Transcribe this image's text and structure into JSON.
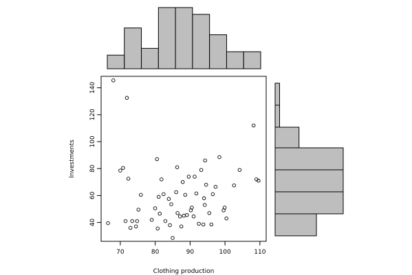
{
  "chart_data": [
    {
      "type": "scatter",
      "xlabel": "Clothing production",
      "ylabel": "Investments",
      "xlim": [
        64.5,
        111.8
      ],
      "ylim": [
        26,
        148.5
      ],
      "x_ticks": [
        70,
        80,
        90,
        100,
        110
      ],
      "y_ticks": [
        40,
        60,
        80,
        100,
        120,
        140
      ],
      "grid": false,
      "points": [
        [
          66.5,
          39.5
        ],
        [
          68.0,
          145.5
        ],
        [
          70.0,
          78.5
        ],
        [
          70.8,
          80.5
        ],
        [
          71.5,
          41.0
        ],
        [
          71.9,
          132.5
        ],
        [
          72.3,
          72.5
        ],
        [
          72.9,
          36.0
        ],
        [
          73.4,
          41.0
        ],
        [
          74.5,
          37.0
        ],
        [
          74.8,
          41.0
        ],
        [
          75.2,
          49.5
        ],
        [
          75.9,
          60.5
        ],
        [
          79.0,
          42.0
        ],
        [
          80.0,
          50.5
        ],
        [
          80.5,
          87.0
        ],
        [
          80.7,
          35.5
        ],
        [
          81.0,
          59.0
        ],
        [
          81.3,
          46.5
        ],
        [
          81.8,
          72.0
        ],
        [
          82.4,
          61.0
        ],
        [
          82.9,
          41.0
        ],
        [
          83.9,
          57.5
        ],
        [
          84.2,
          38.0
        ],
        [
          84.6,
          53.5
        ],
        [
          85.0,
          28.5
        ],
        [
          86.0,
          62.5
        ],
        [
          86.3,
          81.0
        ],
        [
          86.4,
          47.0
        ],
        [
          87.1,
          44.5
        ],
        [
          87.5,
          37.0
        ],
        [
          87.9,
          70.0
        ],
        [
          88.2,
          45.0
        ],
        [
          88.6,
          60.5
        ],
        [
          89.1,
          45.5
        ],
        [
          89.6,
          74.0
        ],
        [
          90.2,
          49.0
        ],
        [
          90.5,
          51.0
        ],
        [
          91.0,
          44.5
        ],
        [
          91.3,
          74.0
        ],
        [
          91.8,
          61.5
        ],
        [
          92.5,
          39.0
        ],
        [
          93.2,
          79.0
        ],
        [
          93.8,
          38.5
        ],
        [
          94.0,
          58.0
        ],
        [
          94.2,
          53.0
        ],
        [
          94.3,
          86.0
        ],
        [
          94.6,
          68.0
        ],
        [
          95.5,
          47.0
        ],
        [
          96.1,
          38.5
        ],
        [
          96.5,
          61.0
        ],
        [
          97.3,
          66.5
        ],
        [
          98.4,
          88.5
        ],
        [
          99.6,
          49.0
        ],
        [
          99.9,
          51.0
        ],
        [
          100.4,
          43.0
        ],
        [
          102.6,
          67.5
        ],
        [
          104.2,
          79.0
        ],
        [
          108.2,
          112.0
        ],
        [
          109.0,
          72.0
        ],
        [
          109.6,
          71.0
        ]
      ]
    },
    {
      "type": "bar",
      "xlim": [
        65,
        110
      ],
      "bin_edges": [
        65,
        70,
        75,
        80,
        85,
        90,
        95,
        100,
        105,
        110
      ],
      "values": [
        1,
        3,
        1.5,
        4.5,
        4.5,
        4,
        2.5,
        1.25,
        1.25
      ],
      "max": 4.5
    },
    {
      "type": "bar",
      "orientation": "horizontal",
      "bin_edges": [
        28,
        40,
        50,
        60,
        70,
        80,
        90,
        100,
        110,
        120,
        130,
        140,
        146
      ],
      "values": [
        1.85,
        3.05,
        3.05,
        3.05,
        1.07,
        0.2,
        0.2,
        0.2,
        0.2,
        0.2,
        0.2,
        0.2
      ],
      "max": 3.05
    }
  ]
}
